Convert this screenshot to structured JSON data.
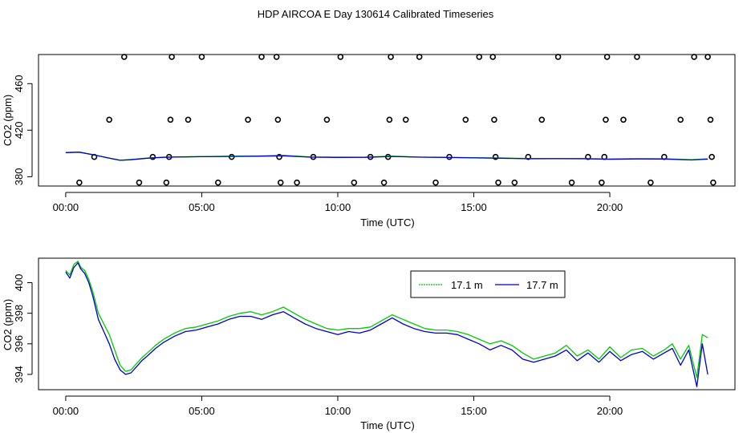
{
  "title": "HDP AIRCOA E  Day 130614  Calibrated Timeseries",
  "colors": {
    "series_1": "#00cc00",
    "series_2": "#0000cc",
    "axes": "#000000"
  },
  "chart_data": [
    {
      "type": "line",
      "xlabel": "Time (UTC)",
      "ylabel": "CO2 (ppm)",
      "xlim": [
        -1.0,
        24.6
      ],
      "ylim": [
        372,
        485
      ],
      "x_ticks": [
        0,
        5,
        10,
        15,
        20
      ],
      "x_tick_labels": [
        "00:00",
        "05:00",
        "10:00",
        "15:00",
        "20:00"
      ],
      "y_ticks": [
        380,
        420,
        460
      ],
      "y_tick_labels": [
        "380",
        "420",
        "460"
      ],
      "grid": false,
      "series": [
        {
          "values_x": [
            0,
            0.5,
            1.0,
            1.6,
            2.0,
            2.4,
            3.0,
            3.6,
            4.0,
            5.0,
            6.0,
            7.0,
            8.0,
            9.0,
            10.0,
            11.0,
            12.0,
            13.0,
            14.0,
            15.0,
            16.0,
            17.0,
            18.0,
            19.0,
            20.0,
            21.0,
            22.0,
            23.0,
            23.6
          ],
          "values_y": [
            400.8,
            401.2,
            399,
            396,
            394.2,
            394.8,
            396,
            396.8,
            397,
            397.3,
            397.6,
            397.8,
            398.3,
            397,
            396.8,
            396.9,
            397.6,
            396.9,
            396.7,
            396.4,
            396.1,
            395.6,
            395.7,
            395.6,
            395.2,
            395.5,
            395.4,
            394.6,
            395.4
          ]
        },
        {
          "values_x": [
            0,
            0.5,
            1.0,
            1.6,
            2.0,
            2.4,
            3.0,
            3.6,
            4.0,
            5.0,
            6.0,
            7.0,
            8.0,
            9.0,
            10.0,
            11.0,
            12.0,
            13.0,
            14.0,
            15.0,
            16.0,
            17.0,
            18.0,
            19.0,
            20.0,
            21.0,
            22.0,
            23.0,
            23.6
          ],
          "values_y": [
            400.7,
            401.1,
            398.9,
            396,
            394.1,
            394.6,
            395.9,
            396.7,
            396.9,
            397.2,
            397.4,
            397.6,
            398.0,
            396.8,
            396.6,
            396.7,
            397.4,
            396.8,
            396.5,
            396.2,
            395.9,
            395.4,
            395.5,
            395.4,
            395.0,
            395.3,
            395.2,
            394.4,
            395.1
          ]
        }
      ],
      "points": {
        "x": [
          0.5,
          1.05,
          1.6,
          2.15,
          2.7,
          3.2,
          3.7,
          3.8,
          3.85,
          3.9,
          4.5,
          5.0,
          5.6,
          6.1,
          6.7,
          7.2,
          7.75,
          7.8,
          7.85,
          7.9,
          8.5,
          9.1,
          9.6,
          10.1,
          10.6,
          11.2,
          11.7,
          11.85,
          11.9,
          11.95,
          12.5,
          13.0,
          13.6,
          14.1,
          14.7,
          15.2,
          15.7,
          15.75,
          15.8,
          15.9,
          16.5,
          17.0,
          17.5,
          18.1,
          18.6,
          19.2,
          19.7,
          19.8,
          19.85,
          19.9,
          20.5,
          21.0,
          21.5,
          22.0,
          22.6,
          23.1,
          23.6,
          23.7,
          23.75,
          23.8
        ],
        "y": [
          375,
          397,
          429,
          483,
          375,
          397,
          375,
          397,
          429,
          483,
          429,
          483,
          375,
          397,
          429,
          483,
          483,
          429,
          397,
          375,
          375,
          397,
          429,
          483,
          375,
          397,
          375,
          397,
          429,
          483,
          429,
          483,
          375,
          397,
          429,
          483,
          483,
          429,
          397,
          375,
          375,
          397,
          429,
          483,
          375,
          397,
          375,
          397,
          429,
          483,
          429,
          483,
          375,
          397,
          429,
          483,
          483,
          429,
          397,
          375
        ]
      }
    },
    {
      "type": "line",
      "xlabel": "Time (UTC)",
      "ylabel": "CO2 (ppm)",
      "xlim": [
        -1.0,
        24.6
      ],
      "ylim": [
        393.0,
        401.6
      ],
      "x_ticks": [
        0,
        5,
        10,
        15,
        20
      ],
      "x_tick_labels": [
        "00:00",
        "05:00",
        "10:00",
        "15:00",
        "20:00"
      ],
      "y_ticks": [
        394,
        396,
        398,
        400
      ],
      "y_tick_labels": [
        "394",
        "396",
        "398",
        "400"
      ],
      "grid": false,
      "legend_position": "top-right",
      "series": [
        {
          "name": "17.1 m",
          "values_x": [
            0,
            0.15,
            0.3,
            0.45,
            0.55,
            0.7,
            0.85,
            1.0,
            1.2,
            1.4,
            1.6,
            1.8,
            2.0,
            2.2,
            2.4,
            2.6,
            2.8,
            3.0,
            3.3,
            3.6,
            4.0,
            4.4,
            4.8,
            5.2,
            5.6,
            6.0,
            6.4,
            6.8,
            7.2,
            7.6,
            8.0,
            8.4,
            8.8,
            9.2,
            9.6,
            10.0,
            10.4,
            10.8,
            11.2,
            11.6,
            12.0,
            12.4,
            12.8,
            13.2,
            13.6,
            14.0,
            14.4,
            14.8,
            15.2,
            15.6,
            16.0,
            16.4,
            16.8,
            17.2,
            17.6,
            18.0,
            18.4,
            18.8,
            19.2,
            19.6,
            20.0,
            20.4,
            20.8,
            21.2,
            21.6,
            22.0,
            22.3,
            22.6,
            22.9,
            23.2,
            23.4,
            23.6
          ],
          "values_y": [
            400.8,
            400.5,
            401.2,
            401.4,
            401.0,
            400.8,
            400.2,
            399.4,
            398.0,
            397.3,
            396.6,
            395.6,
            394.6,
            394.2,
            394.3,
            394.7,
            395.1,
            395.4,
            395.9,
            396.3,
            396.7,
            397.0,
            397.1,
            397.3,
            397.5,
            397.8,
            398.0,
            398.1,
            397.9,
            398.1,
            398.4,
            398.0,
            397.6,
            397.3,
            397.0,
            396.9,
            397.0,
            397.0,
            397.1,
            397.5,
            397.9,
            397.6,
            397.3,
            397.0,
            396.9,
            396.9,
            396.8,
            396.6,
            396.3,
            396.0,
            396.2,
            395.9,
            395.4,
            395.0,
            395.2,
            395.4,
            395.9,
            395.2,
            395.6,
            395.0,
            395.8,
            395.1,
            395.6,
            395.7,
            395.2,
            395.6,
            396.0,
            395.0,
            395.9,
            393.8,
            396.6,
            396.4
          ]
        },
        {
          "name": "17.7 m",
          "values_x": [
            0,
            0.15,
            0.3,
            0.45,
            0.55,
            0.7,
            0.85,
            1.0,
            1.2,
            1.4,
            1.6,
            1.8,
            2.0,
            2.2,
            2.4,
            2.6,
            2.8,
            3.0,
            3.3,
            3.6,
            4.0,
            4.4,
            4.8,
            5.2,
            5.6,
            6.0,
            6.4,
            6.8,
            7.2,
            7.6,
            8.0,
            8.4,
            8.8,
            9.2,
            9.6,
            10.0,
            10.4,
            10.8,
            11.2,
            11.6,
            12.0,
            12.4,
            12.8,
            13.2,
            13.6,
            14.0,
            14.4,
            14.8,
            15.2,
            15.6,
            16.0,
            16.4,
            16.8,
            17.2,
            17.6,
            18.0,
            18.4,
            18.8,
            19.2,
            19.6,
            20.0,
            20.4,
            20.8,
            21.2,
            21.6,
            22.0,
            22.3,
            22.6,
            22.9,
            23.2,
            23.4,
            23.6
          ],
          "values_y": [
            400.7,
            400.3,
            401.0,
            401.3,
            400.9,
            400.6,
            400.0,
            399.1,
            397.6,
            396.8,
            396.0,
            395.0,
            394.3,
            394.0,
            394.1,
            394.5,
            394.9,
            395.2,
            395.7,
            396.1,
            396.5,
            396.8,
            396.9,
            397.1,
            397.3,
            397.6,
            397.8,
            397.8,
            397.6,
            397.9,
            398.1,
            397.7,
            397.3,
            397.0,
            396.8,
            396.6,
            396.8,
            396.7,
            396.9,
            397.3,
            397.7,
            397.3,
            397.0,
            396.8,
            396.7,
            396.7,
            396.6,
            396.3,
            396.0,
            395.6,
            395.9,
            395.6,
            395.0,
            394.8,
            395.0,
            395.2,
            395.6,
            394.9,
            395.4,
            394.8,
            395.5,
            394.9,
            395.3,
            395.5,
            395.0,
            395.4,
            395.7,
            394.6,
            395.6,
            393.2,
            396.0,
            394.0
          ]
        }
      ]
    }
  ]
}
